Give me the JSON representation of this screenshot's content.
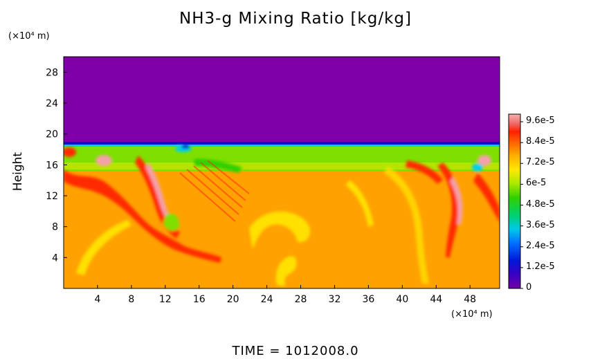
{
  "chart_data": {
    "type": "heatmap",
    "title": "NH3-g Mixing Ratio [kg/kg]",
    "ylabel": "Height",
    "y_unit": "(×10⁴ m)",
    "x_unit": "(×10⁴ m)",
    "x_ticks": [
      "4",
      "8",
      "12",
      "16",
      "20",
      "24",
      "28",
      "32",
      "36",
      "40",
      "44",
      "48"
    ],
    "y_ticks": [
      "4",
      "8",
      "12",
      "16",
      "20",
      "24",
      "28"
    ],
    "xlim": [
      0,
      51.5
    ],
    "ylim": [
      0,
      30
    ],
    "colorbar": {
      "labels": [
        "9.6e-5",
        "8.4e-5",
        "7.2e-5",
        "6e-5",
        "4.8e-5",
        "3.6e-5",
        "2.4e-5",
        "1.2e-5",
        "0"
      ],
      "range": [
        0,
        0.000102
      ]
    },
    "regions": [
      {
        "name": "upper-atmosphere",
        "value_range": [
          0,
          0
        ],
        "color": "#7f00a8",
        "y_range": [
          18.8,
          30
        ]
      },
      {
        "name": "transition-layer",
        "value_range": [
          6e-05,
          7e-05
        ],
        "color": "#7fe000",
        "y_range": [
          15.5,
          18.8
        ]
      },
      {
        "name": "lower-atmosphere",
        "value_range": [
          7.8e-05,
          8e-05
        ],
        "color": "#ffa100",
        "y_range": [
          0,
          15.5
        ]
      }
    ],
    "footer": "TIME  =  1012008.0"
  },
  "colors": {
    "plot_bg": "#ffa100",
    "top": "#7f00a8",
    "green": "#7fe000",
    "yellow": "#ffe000",
    "red": "#ff2a00",
    "pink": "#f5a0a8",
    "blue": "#0018c8",
    "cyan": "#00d0e8"
  }
}
